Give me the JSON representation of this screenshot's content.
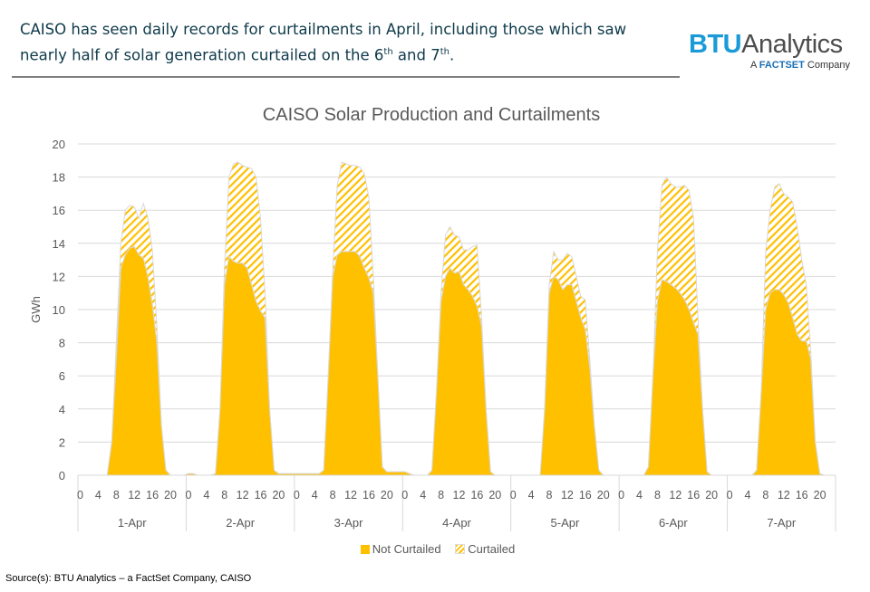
{
  "header": {
    "headline_part1": "CAISO has seen daily records for curtailments in April, including those which saw nearly half of solar generation curtailed on the 6",
    "sup1": "th",
    "mid": " and 7",
    "sup2": "th",
    "end": ".",
    "logo": {
      "btu": "BTU",
      "analytics": "Analytics",
      "a": "A ",
      "factset": "FACTSET",
      "company": " Company"
    }
  },
  "source": "Source(s): BTU Analytics – a FactSet Company, CAISO",
  "colors": {
    "not_curtailed": "#FFC000",
    "curtailed_hatch": "#FFC000",
    "outline": "#D9D9D9",
    "brand_blue": "#1A9AD6"
  },
  "chart_data": {
    "type": "area",
    "stacked": true,
    "title": "CAISO Solar Production and Curtailments",
    "ylabel": "GWh",
    "ylim": [
      0,
      20
    ],
    "yticks": [
      0,
      2,
      4,
      6,
      8,
      10,
      12,
      14,
      16,
      18,
      20
    ],
    "grid": true,
    "legend_position": "bottom",
    "days": [
      "1-Apr",
      "2-Apr",
      "3-Apr",
      "4-Apr",
      "5-Apr",
      "6-Apr",
      "7-Apr"
    ],
    "hour_tick_labels": [
      "0",
      "4",
      "8",
      "12",
      "16",
      "20"
    ],
    "hours_per_day": 24,
    "series": [
      {
        "name": "Not Curtailed",
        "style": "solid",
        "values": [
          [
            0,
            0,
            0,
            0,
            0,
            0,
            0,
            2,
            7,
            12.5,
            13.3,
            13.7,
            13.8,
            13.3,
            13.1,
            12,
            10.3,
            8,
            3,
            0.3,
            0,
            0,
            0,
            0
          ],
          [
            0.1,
            0.1,
            0,
            0,
            0,
            0,
            0.1,
            4,
            11.5,
            13.2,
            12.9,
            12.8,
            12.8,
            12.5,
            11.5,
            10.5,
            9.9,
            9.5,
            4,
            0.3,
            0.1,
            0.1,
            0.1,
            0.1
          ],
          [
            0.1,
            0.1,
            0.1,
            0.1,
            0.1,
            0.1,
            0.3,
            6,
            12,
            13.3,
            13.5,
            13.5,
            13.5,
            13.5,
            13.2,
            12.5,
            11.9,
            11,
            6,
            0.5,
            0.2,
            0.2,
            0.2,
            0.2
          ],
          [
            0.2,
            0.1,
            0,
            0,
            0,
            0,
            0.3,
            5,
            10.5,
            12,
            12.5,
            12.2,
            12.3,
            11.5,
            11.2,
            10.8,
            10.2,
            9,
            4,
            0.2,
            0,
            0,
            0,
            0
          ],
          [
            0,
            0,
            0,
            0,
            0,
            0,
            0,
            4,
            11,
            12,
            11.8,
            11.2,
            11.5,
            11.5,
            10.5,
            9.5,
            8.8,
            6.5,
            3,
            0.3,
            0,
            0,
            0,
            0
          ],
          [
            0,
            0,
            0,
            0,
            0,
            0,
            0.5,
            6,
            10.5,
            11.8,
            11.7,
            11.5,
            11.3,
            11,
            10.6,
            10,
            9.2,
            8.5,
            4,
            0.2,
            0,
            0,
            0,
            0
          ],
          [
            0,
            0,
            0,
            0,
            0,
            0,
            0.3,
            5,
            10,
            11,
            11.2,
            11.2,
            10.9,
            10.4,
            9.5,
            8.5,
            8.1,
            8.1,
            7,
            2,
            0.1,
            0,
            0,
            0
          ]
        ]
      },
      {
        "name": "Curtailed",
        "style": "hatched",
        "values": [
          [
            0,
            0,
            0,
            0,
            0,
            0,
            0,
            0,
            1,
            1.5,
            2.7,
            2.6,
            2.4,
            2.2,
            3.3,
            3.6,
            3.3,
            1,
            0,
            0,
            0,
            0,
            0,
            0
          ],
          [
            0,
            0,
            0,
            0,
            0,
            0,
            0,
            0,
            1,
            4.8,
            5.9,
            6.1,
            5.9,
            6.1,
            7,
            7.5,
            5.6,
            1.5,
            0,
            0,
            0,
            0,
            0,
            0
          ],
          [
            0,
            0,
            0,
            0,
            0,
            0,
            0,
            0,
            0.5,
            4.2,
            5.4,
            5.3,
            5.2,
            5.2,
            5.4,
            5.7,
            4.9,
            1,
            0,
            0,
            0,
            0,
            0,
            0
          ],
          [
            0,
            0,
            0,
            0,
            0,
            0,
            0,
            0,
            0.5,
            2.5,
            2.5,
            2.3,
            2.1,
            2.1,
            2.4,
            3,
            3.7,
            0.5,
            0,
            0,
            0,
            0,
            0,
            0
          ],
          [
            0,
            0,
            0,
            0,
            0,
            0,
            0,
            0,
            0.5,
            1.5,
            1.2,
            1.8,
            1.9,
            1.7,
            1.5,
            1.3,
            1.8,
            0.5,
            0,
            0,
            0,
            0,
            0,
            0
          ],
          [
            0,
            0,
            0,
            0,
            0,
            0,
            0,
            0,
            3,
            5.7,
            6.3,
            6.1,
            6.1,
            6.4,
            6.9,
            7.2,
            6.3,
            1,
            0,
            0,
            0,
            0,
            0,
            0
          ],
          [
            0,
            0,
            0,
            0,
            0,
            0,
            0,
            0,
            3.5,
            5,
            6.2,
            6.4,
            6.1,
            6.4,
            7,
            6.5,
            4.9,
            3.4,
            0.5,
            0,
            0,
            0,
            0,
            0
          ]
        ]
      }
    ]
  }
}
